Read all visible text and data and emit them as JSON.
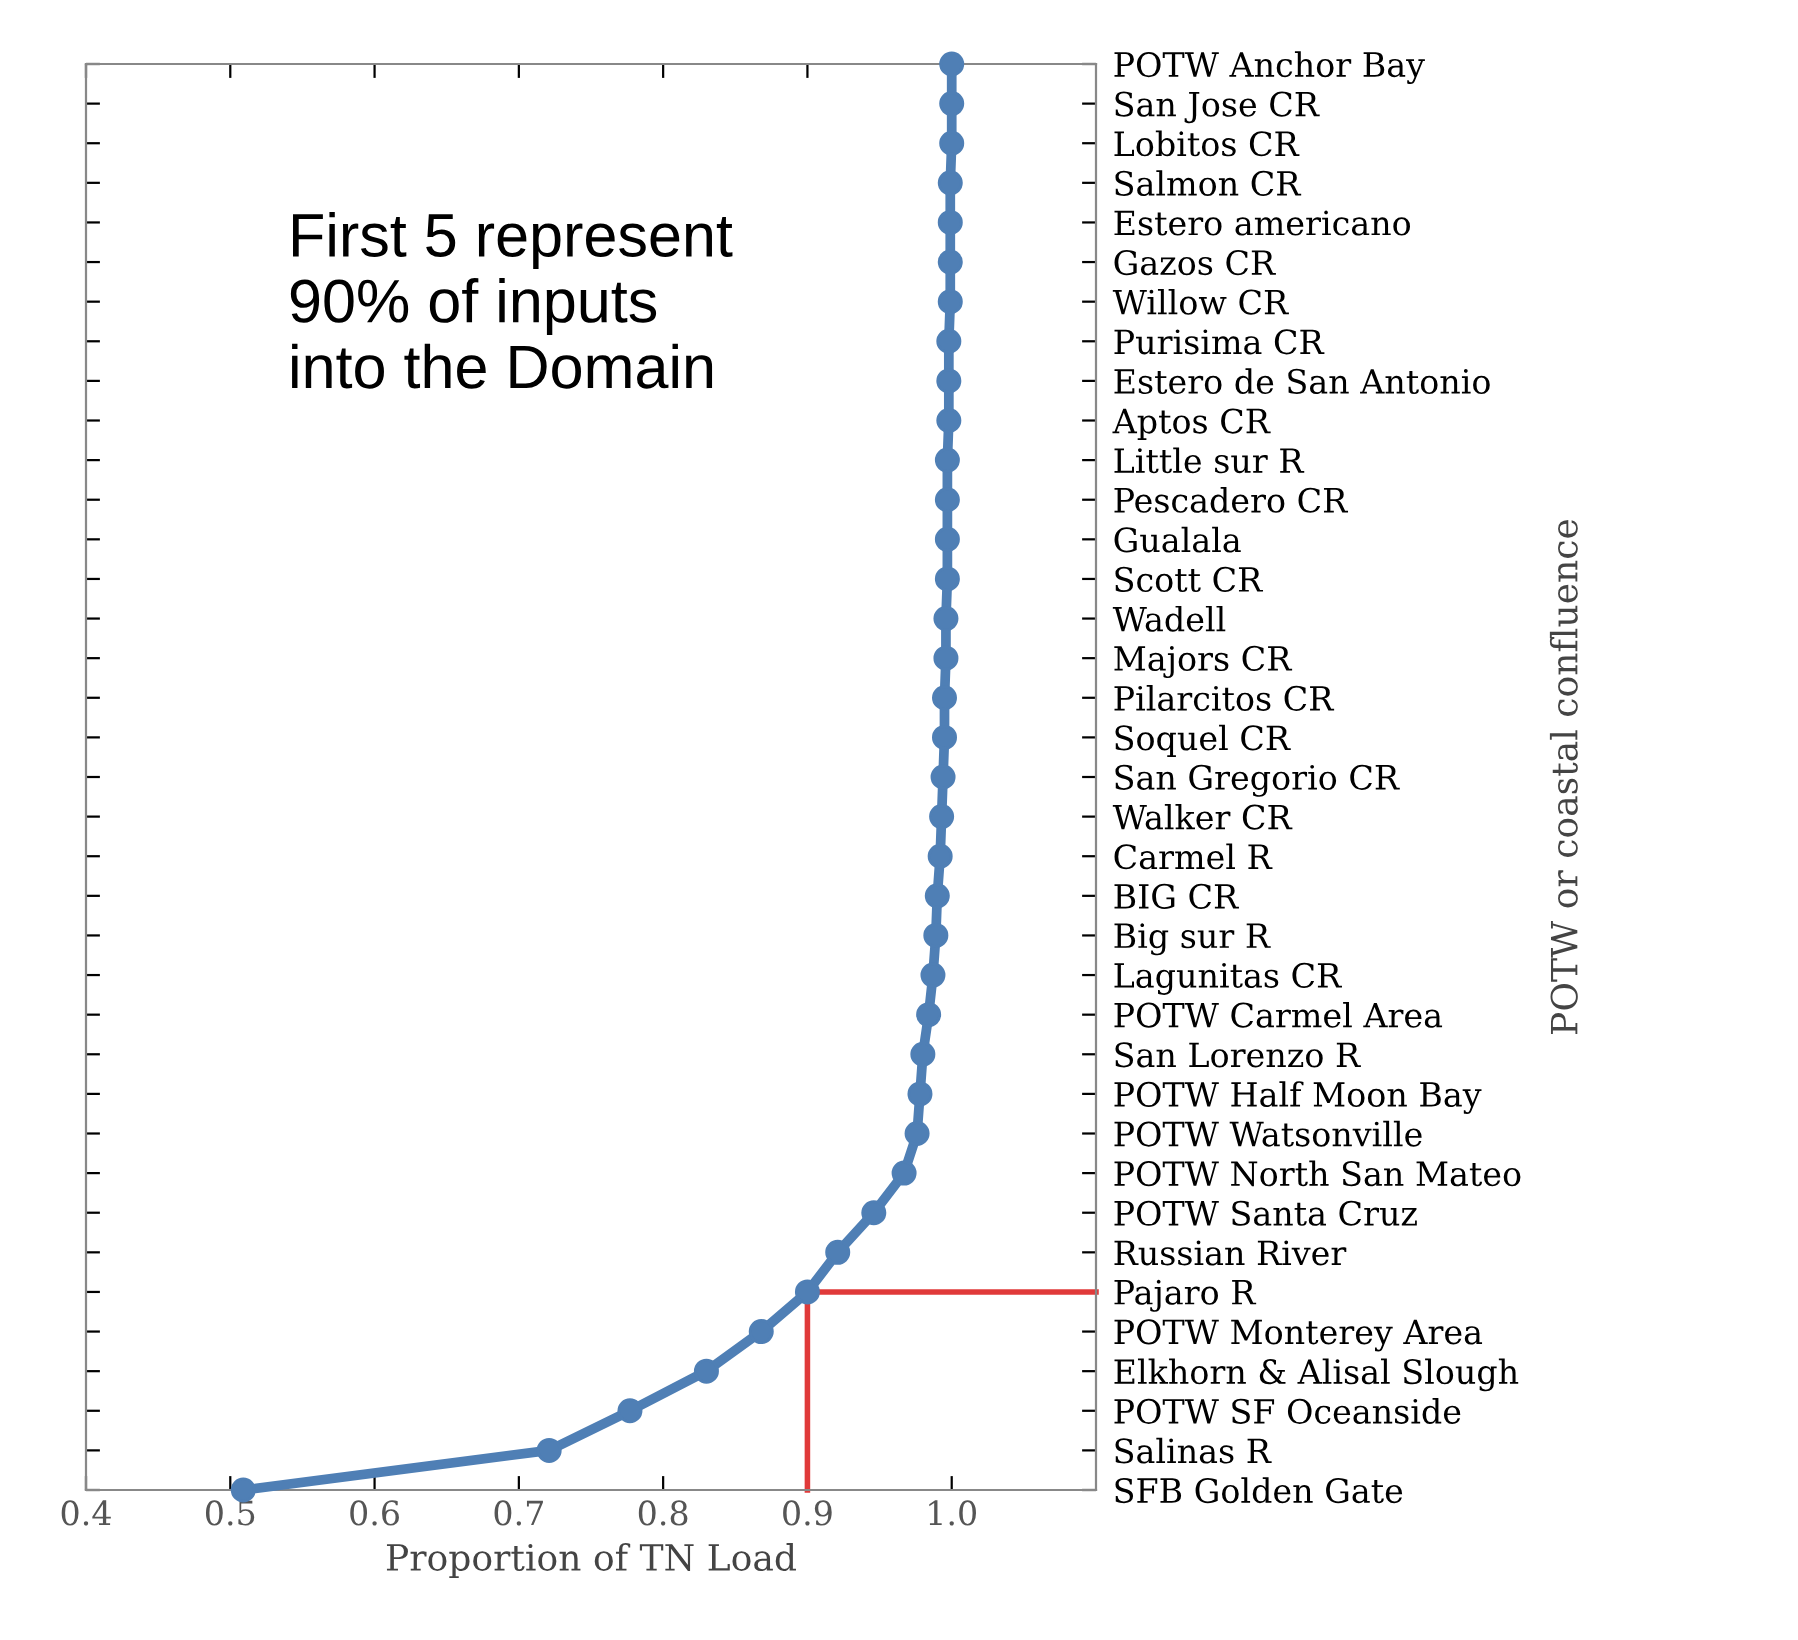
{
  "chart_data": {
    "type": "line",
    "orientation": "horizontal",
    "xlabel": "Proportion of TN Load",
    "ylabel": "POTW or coastal confluence",
    "categories": [
      "POTW Anchor Bay",
      "San Jose CR",
      "Lobitos CR",
      "Salmon CR",
      "Estero americano",
      "Gazos CR",
      "Willow CR",
      "Purisima CR",
      "Estero de San Antonio",
      "Aptos CR",
      "Little sur R",
      "Pescadero CR",
      "Gualala",
      "Scott CR",
      "Wadell",
      "Majors CR",
      "Pilarcitos CR",
      "Soquel CR",
      "San Gregorio CR",
      "Walker CR",
      "Carmel R",
      "BIG CR",
      "Big sur R",
      "Lagunitas CR",
      "POTW Carmel Area",
      "San Lorenzo R",
      "POTW Half Moon Bay",
      "POTW Watsonville",
      "POTW North San Mateo",
      "POTW Santa Cruz",
      "Russian River",
      "Pajaro R",
      "POTW Monterey Area",
      "Elkhorn & Alisal Slough",
      "POTW SF Oceanside",
      "Salinas R",
      "SFB Golden Gate"
    ],
    "series": [
      {
        "color": "#4f7fb5",
        "values": [
          1.0,
          1.0,
          1.0,
          0.999,
          0.999,
          0.999,
          0.999,
          0.998,
          0.998,
          0.998,
          0.997,
          0.997,
          0.997,
          0.997,
          0.996,
          0.996,
          0.995,
          0.995,
          0.994,
          0.993,
          0.992,
          0.99,
          0.989,
          0.987,
          0.984,
          0.98,
          0.978,
          0.976,
          0.967,
          0.946,
          0.921,
          0.9,
          0.868,
          0.83,
          0.777,
          0.721,
          0.509
        ]
      }
    ],
    "xlim": [
      0.4,
      1.1
    ],
    "xticks": [
      0.4,
      0.5,
      0.6,
      0.7,
      0.8,
      0.9,
      {
        "value": 1,
        "label": "1.0"
      }
    ],
    "marker": "circle",
    "line_style": "solid",
    "grid": false,
    "legend": false,
    "ref_lines": [
      {
        "axis": "x",
        "value": 0.9,
        "color": "#e03a3a"
      },
      {
        "axis": "y",
        "value": "Pajaro R",
        "color": "#e03a3a"
      }
    ],
    "annotations": [
      "First 5 represent\n90% of inputs\ninto the Domain"
    ]
  }
}
